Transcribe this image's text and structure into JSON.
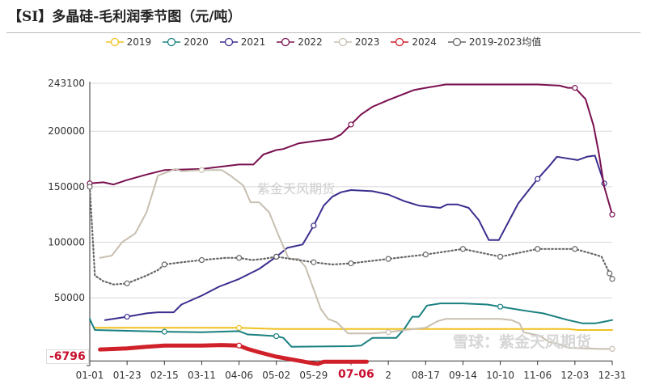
{
  "title": "【SI】多晶硅-毛利润季节图（元/吨）",
  "watermark": "紫金天风期货",
  "watermark_bottom": "雪球：紫金天风期货",
  "chart_data": {
    "type": "line",
    "title": "【SI】多晶硅-毛利润季节图（元/吨）",
    "xlabel": "",
    "ylabel": "",
    "x_ticks": [
      "01-01",
      "01-23",
      "02-15",
      "03-11",
      "04-06",
      "05-02",
      "05-29",
      "",
      "2",
      "08-17",
      "09-14",
      "10-10",
      "11-06",
      "12-03",
      "12-31"
    ],
    "y_ticks": [
      243100,
      200000,
      150000,
      100000,
      50000
    ],
    "ylim": [
      -11000,
      243100
    ],
    "grid": true,
    "legend": "top",
    "crosshair": {
      "x_label": "07-06",
      "y_label": "-6796",
      "y": -6796
    },
    "series": [
      {
        "name": "2019",
        "color": "#f0c020",
        "markers": [
          "04-06",
          "07-20",
          "08-17",
          "09-14"
        ],
        "points": [
          [
            "01-04",
            23000
          ],
          [
            "04-06",
            23000
          ],
          [
            "05-02",
            22000
          ],
          [
            "11-28",
            22000
          ],
          [
            "12-05",
            21000
          ],
          [
            "12-31",
            21000
          ]
        ]
      },
      {
        "name": "2020",
        "color": "#1a8080",
        "markers": [
          "02-15",
          "05-02",
          "10-10"
        ],
        "points": [
          [
            "01-01",
            31000
          ],
          [
            "01-04",
            21000
          ],
          [
            "02-15",
            19500
          ],
          [
            "03-11",
            19000
          ],
          [
            "04-06",
            20000
          ],
          [
            "04-12",
            17000
          ],
          [
            "04-20",
            16500
          ],
          [
            "05-02",
            15500
          ],
          [
            "05-07",
            14000
          ],
          [
            "05-13",
            6000
          ],
          [
            "06-24",
            6500
          ],
          [
            "07-01",
            7000
          ],
          [
            "07-09",
            14000
          ],
          [
            "07-26",
            14000
          ],
          [
            "08-01",
            22000
          ],
          [
            "08-07",
            33000
          ],
          [
            "08-12",
            33000
          ],
          [
            "08-18",
            43000
          ],
          [
            "08-28",
            45000
          ],
          [
            "09-14",
            45000
          ],
          [
            "10-01",
            44000
          ],
          [
            "10-10",
            42000
          ],
          [
            "10-30",
            38000
          ],
          [
            "11-10",
            36000
          ],
          [
            "11-28",
            30000
          ],
          [
            "12-09",
            27000
          ],
          [
            "12-18",
            27000
          ],
          [
            "12-23",
            28000
          ],
          [
            "12-31",
            30000
          ]
        ]
      },
      {
        "name": "2021",
        "color": "#3a2f8e",
        "markers": [
          "01-23",
          "05-02",
          "05-29",
          "11-06",
          "12-25"
        ],
        "points": [
          [
            "01-10",
            30000
          ],
          [
            "01-23",
            33000
          ],
          [
            "02-04",
            36000
          ],
          [
            "02-11",
            37000
          ],
          [
            "02-21",
            37000
          ],
          [
            "02-26",
            44000
          ],
          [
            "03-11",
            52000
          ],
          [
            "03-23",
            60000
          ],
          [
            "04-06",
            67000
          ],
          [
            "04-20",
            76000
          ],
          [
            "05-02",
            87000
          ],
          [
            "05-10",
            95000
          ],
          [
            "05-21",
            98000
          ],
          [
            "05-29",
            115000
          ],
          [
            "06-05",
            133000
          ],
          [
            "06-11",
            141000
          ],
          [
            "06-17",
            145000
          ],
          [
            "06-24",
            147000
          ],
          [
            "07-09",
            146000
          ],
          [
            "07-20",
            143000
          ],
          [
            "08-01",
            137000
          ],
          [
            "08-12",
            133000
          ],
          [
            "08-28",
            131000
          ],
          [
            "09-02",
            134000
          ],
          [
            "09-10",
            134000
          ],
          [
            "09-18",
            131000
          ],
          [
            "09-25",
            120000
          ],
          [
            "10-02",
            102000
          ],
          [
            "10-09",
            102000
          ],
          [
            "10-23",
            135000
          ],
          [
            "11-06",
            157000
          ],
          [
            "11-14",
            168000
          ],
          [
            "11-20",
            177000
          ],
          [
            "12-05",
            174000
          ],
          [
            "12-12",
            177000
          ],
          [
            "12-18",
            178000
          ],
          [
            "12-25",
            153000
          ]
        ]
      },
      {
        "name": "2022",
        "color": "#7a1050",
        "markers": [
          "01-01",
          "06-24",
          "12-03",
          "12-31"
        ],
        "points": [
          [
            "01-01",
            153000
          ],
          [
            "01-09",
            154000
          ],
          [
            "01-15",
            152000
          ],
          [
            "01-23",
            156000
          ],
          [
            "02-04",
            161000
          ],
          [
            "02-15",
            165000
          ],
          [
            "03-11",
            166000
          ],
          [
            "04-06",
            170000
          ],
          [
            "04-16",
            170000
          ],
          [
            "04-23",
            179000
          ],
          [
            "05-02",
            183000
          ],
          [
            "05-07",
            184000
          ],
          [
            "05-18",
            189000
          ],
          [
            "05-29",
            191000
          ],
          [
            "06-11",
            193000
          ],
          [
            "06-17",
            197000
          ],
          [
            "06-24",
            206000
          ],
          [
            "07-01",
            215000
          ],
          [
            "07-09",
            222000
          ],
          [
            "07-20",
            228000
          ],
          [
            "08-08",
            237000
          ],
          [
            "08-17",
            239000
          ],
          [
            "09-01",
            242000
          ],
          [
            "09-14",
            242000
          ],
          [
            "10-10",
            242000
          ],
          [
            "11-06",
            242000
          ],
          [
            "11-22",
            241000
          ],
          [
            "11-28",
            239000
          ],
          [
            "12-03",
            239000
          ],
          [
            "12-11",
            229000
          ],
          [
            "12-17",
            205000
          ],
          [
            "12-21",
            180000
          ],
          [
            "12-25",
            150000
          ],
          [
            "12-31",
            125000
          ]
        ]
      },
      {
        "name": "2023",
        "color": "#c8bfb0",
        "markers": [
          "03-11",
          "07-20",
          "12-31"
        ],
        "points": [
          [
            "01-07",
            86000
          ],
          [
            "01-14",
            88000
          ],
          [
            "01-20",
            100000
          ],
          [
            "01-28",
            108000
          ],
          [
            "02-04",
            127000
          ],
          [
            "02-11",
            160000
          ],
          [
            "02-22",
            166000
          ],
          [
            "02-26",
            164000
          ],
          [
            "03-11",
            165000
          ],
          [
            "03-25",
            165000
          ],
          [
            "03-31",
            160000
          ],
          [
            "04-09",
            151000
          ],
          [
            "04-14",
            136000
          ],
          [
            "04-20",
            136000
          ],
          [
            "04-27",
            127000
          ],
          [
            "05-04",
            105000
          ],
          [
            "05-11",
            85000
          ],
          [
            "05-18",
            85000
          ],
          [
            "05-23",
            78000
          ],
          [
            "06-03",
            40000
          ],
          [
            "06-08",
            31000
          ],
          [
            "06-14",
            28000
          ],
          [
            "06-22",
            18000
          ],
          [
            "07-09",
            18000
          ],
          [
            "07-20",
            19000
          ],
          [
            "08-01",
            21000
          ],
          [
            "08-17",
            23000
          ],
          [
            "08-26",
            29000
          ],
          [
            "09-01",
            31000
          ],
          [
            "09-14",
            31000
          ],
          [
            "10-10",
            31000
          ],
          [
            "10-18",
            30000
          ],
          [
            "10-24",
            27000
          ],
          [
            "10-27",
            19000
          ],
          [
            "11-07",
            16000
          ],
          [
            "11-15",
            10000
          ],
          [
            "11-20",
            9000
          ],
          [
            "11-28",
            5000
          ],
          [
            "12-21",
            4000
          ],
          [
            "12-31",
            4000
          ]
        ]
      },
      {
        "name": "2024",
        "color": "#d0202a",
        "width": 5,
        "markers": [
          "04-06"
        ],
        "points": [
          [
            "01-07",
            3500
          ],
          [
            "01-23",
            4500
          ],
          [
            "02-04",
            6000
          ],
          [
            "02-15",
            7000
          ],
          [
            "03-11",
            7000
          ],
          [
            "03-25",
            7500
          ],
          [
            "04-06",
            7000
          ],
          [
            "04-12",
            4000
          ],
          [
            "04-20",
            1000
          ],
          [
            "05-02",
            -3000
          ],
          [
            "05-29",
            -9000
          ],
          [
            "06-01",
            -9500
          ],
          [
            "06-05",
            -7500
          ],
          [
            "07-05",
            -7500
          ]
        ]
      },
      {
        "name": "2019-2023均值",
        "color": "#666666",
        "dash": true,
        "markers": [
          "01-01",
          "01-23",
          "02-15",
          "03-11",
          "04-06",
          "05-02",
          "05-29",
          "06-24",
          "07-20",
          "08-17",
          "09-14",
          "10-10",
          "11-06",
          "12-03",
          "12-29",
          "12-31"
        ],
        "points": [
          [
            "01-01",
            150000
          ],
          [
            "01-04",
            70000
          ],
          [
            "01-09",
            65000
          ],
          [
            "01-15",
            62000
          ],
          [
            "01-23",
            63000
          ],
          [
            "02-04",
            70000
          ],
          [
            "02-11",
            75000
          ],
          [
            "02-15",
            80000
          ],
          [
            "02-26",
            82000
          ],
          [
            "03-11",
            84000
          ],
          [
            "03-28",
            86000
          ],
          [
            "04-06",
            86000
          ],
          [
            "04-15",
            84000
          ],
          [
            "04-23",
            85000
          ],
          [
            "05-02",
            87000
          ],
          [
            "05-29",
            82000
          ],
          [
            "06-11",
            80000
          ],
          [
            "06-24",
            81000
          ],
          [
            "07-20",
            85000
          ],
          [
            "08-17",
            89000
          ],
          [
            "09-14",
            94000
          ],
          [
            "10-10",
            87000
          ],
          [
            "11-06",
            94000
          ],
          [
            "12-03",
            94000
          ],
          [
            "12-18",
            89000
          ],
          [
            "12-23",
            87000
          ],
          [
            "12-29",
            72000
          ],
          [
            "12-31",
            67000
          ]
        ]
      }
    ]
  }
}
